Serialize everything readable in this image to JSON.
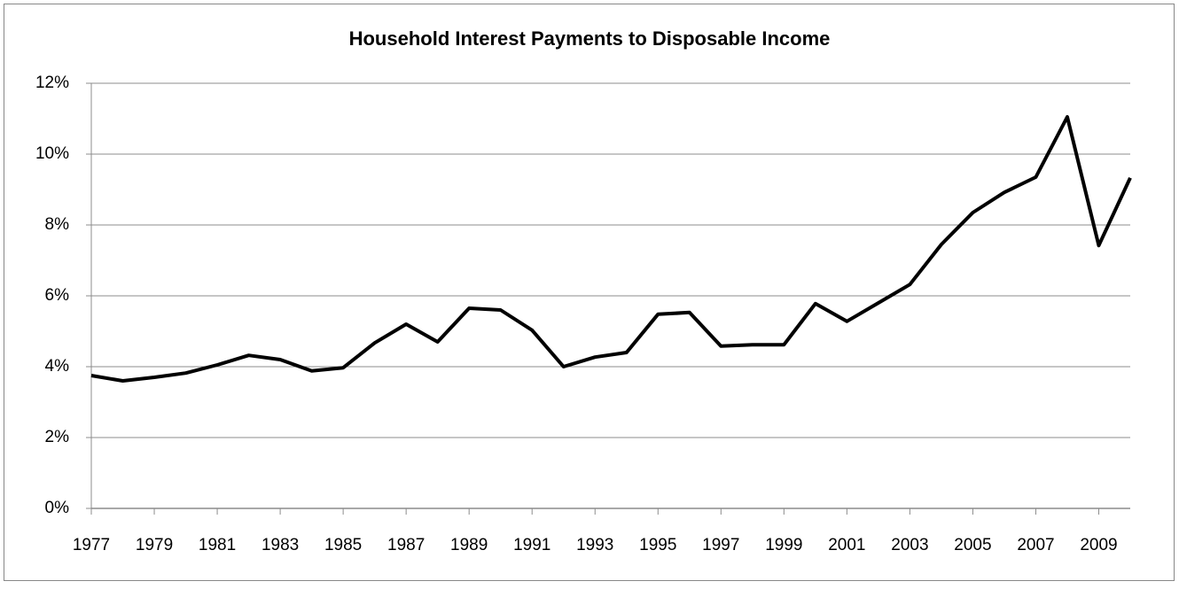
{
  "chart_data": {
    "type": "line",
    "title": "Household Interest Payments to Disposable Income",
    "categories": [
      "1977",
      null,
      "1979",
      null,
      "1981",
      null,
      "1983",
      null,
      "1985",
      null,
      "1987",
      null,
      "1989",
      null,
      "1991",
      null,
      "1993",
      null,
      "1995",
      null,
      "1997",
      null,
      "1999",
      null,
      "2001",
      null,
      "2003",
      null,
      "2005",
      null,
      "2007",
      null,
      "2009",
      null
    ],
    "values": [
      3.75,
      3.6,
      3.7,
      3.82,
      4.05,
      4.32,
      4.2,
      3.88,
      3.97,
      4.67,
      5.2,
      4.7,
      5.65,
      5.6,
      5.03,
      4.0,
      4.27,
      4.4,
      5.48,
      5.53,
      4.58,
      4.62,
      4.62,
      5.78,
      5.28,
      5.8,
      6.32,
      7.45,
      8.35,
      8.92,
      9.35,
      11.05,
      7.42,
      9.33
    ],
    "color": "#000000",
    "ylim": [
      0,
      12
    ],
    "yticks": [
      {
        "value": 0,
        "label": "0%"
      },
      {
        "value": 2,
        "label": "2%"
      },
      {
        "value": 4,
        "label": "4%"
      },
      {
        "value": 6,
        "label": "6%"
      },
      {
        "value": 8,
        "label": "8%"
      },
      {
        "value": 10,
        "label": "10%"
      },
      {
        "value": 12,
        "label": "12%"
      }
    ],
    "grid": true
  }
}
